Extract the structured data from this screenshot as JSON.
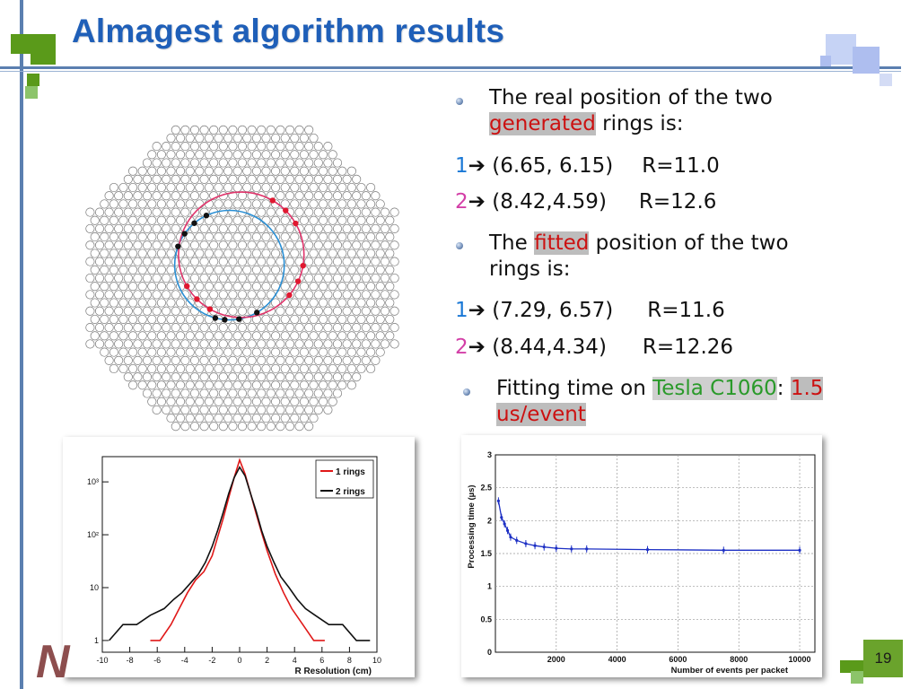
{
  "slide": {
    "title": "Almagest algorithm results",
    "page_number": "19",
    "logo_text": "N",
    "accent_green": "#5a9a1a",
    "accent_blue": "#1f5fb8"
  },
  "generated": {
    "line1": "The real position of the two",
    "word": "generated",
    "line2_rest": " rings is:",
    "rows": [
      {
        "num": "1",
        "arrow": "➔",
        "pos": " (6.65, 6.15)",
        "r": "R=11.0"
      },
      {
        "num": "2",
        "arrow": "➔",
        "pos": " (8.42,4.59)",
        "r": "R=12.6"
      }
    ]
  },
  "fitted": {
    "pre": "The ",
    "word": "fitted",
    "post": " position of the two",
    "line2": "rings is:",
    "rows": [
      {
        "num": "1",
        "arrow": "➔",
        "pos": " (7.29, 6.57)",
        "r": "R=11.6"
      },
      {
        "num": "2",
        "arrow": "➔",
        "pos": " (8.44,4.34)",
        "r": "R=12.26"
      }
    ]
  },
  "timing": {
    "pre": "Fitting time on ",
    "device": "Tesla C1060",
    "colon": ": ",
    "value1": "1.5",
    "value2": "us/event"
  },
  "chart_data": [
    {
      "type": "line",
      "title": "",
      "xlabel": "R Resolution (cm)",
      "ylabel": "",
      "log_y": true,
      "xlim": [
        -10,
        10
      ],
      "ylim": [
        0.6,
        3000
      ],
      "x_ticks": [
        -10,
        -8,
        -6,
        -4,
        -2,
        0,
        2,
        4,
        6,
        8,
        10
      ],
      "y_ticks": [
        {
          "v": 1,
          "label": "1"
        },
        {
          "v": 10,
          "label": "10"
        },
        {
          "v": 100,
          "label": "10²"
        },
        {
          "v": 1000,
          "label": "10³"
        }
      ],
      "legend": "top-right",
      "series": [
        {
          "name": "1 rings",
          "color": "#e01818",
          "x": [
            -6.5,
            -5.8,
            -5.0,
            -4.4,
            -3.8,
            -3.2,
            -2.6,
            -2.0,
            -1.6,
            -1.2,
            -0.8,
            -0.4,
            0.0,
            0.4,
            0.8,
            1.2,
            1.6,
            2.0,
            2.6,
            3.2,
            3.8,
            4.6,
            5.4,
            6.2
          ],
          "values": [
            1,
            1,
            2,
            4,
            8,
            14,
            20,
            40,
            90,
            200,
            500,
            1200,
            2600,
            1400,
            600,
            250,
            110,
            50,
            18,
            8,
            4,
            2,
            1,
            1
          ]
        },
        {
          "name": "2 rings",
          "color": "#111111",
          "x": [
            -9.5,
            -8.5,
            -7.5,
            -6.5,
            -5.5,
            -4.8,
            -4.2,
            -3.6,
            -3.0,
            -2.5,
            -2.0,
            -1.6,
            -1.2,
            -0.8,
            -0.4,
            0.0,
            0.4,
            0.8,
            1.2,
            1.6,
            2.0,
            2.5,
            3.0,
            3.6,
            4.2,
            4.8,
            5.5,
            6.5,
            7.5,
            8.5,
            9.5
          ],
          "values": [
            1,
            2,
            2,
            3,
            4,
            6,
            8,
            12,
            18,
            30,
            60,
            120,
            260,
            600,
            1200,
            1900,
            1300,
            600,
            280,
            120,
            60,
            30,
            16,
            10,
            6,
            4,
            3,
            2,
            2,
            1,
            1
          ]
        }
      ]
    },
    {
      "type": "line",
      "title": "",
      "xlabel": "Number of events per packet",
      "ylabel": "Processing time (µs)",
      "xlim": [
        0,
        10500
      ],
      "ylim": [
        0,
        3
      ],
      "x_ticks": [
        2000,
        4000,
        6000,
        8000,
        10000
      ],
      "y_ticks": [
        0,
        0.5,
        1,
        1.5,
        2,
        2.5,
        3
      ],
      "grid": true,
      "series": [
        {
          "name": "",
          "color": "#1c2fc4",
          "x": [
            100,
            200,
            300,
            400,
            500,
            700,
            1000,
            1300,
            1600,
            2000,
            2500,
            3000,
            5000,
            7500,
            10000
          ],
          "values": [
            2.3,
            2.05,
            1.95,
            1.85,
            1.75,
            1.7,
            1.65,
            1.62,
            1.6,
            1.58,
            1.57,
            1.57,
            1.56,
            1.55,
            1.55
          ]
        }
      ]
    }
  ],
  "rings_figure": {
    "circles": [
      {
        "cx": 6.65,
        "cy": 6.15,
        "r": 11.0,
        "color": "#2a8fd4"
      },
      {
        "cx": 8.42,
        "cy": 4.59,
        "r": 12.6,
        "color": "#e0336a"
      }
    ]
  }
}
